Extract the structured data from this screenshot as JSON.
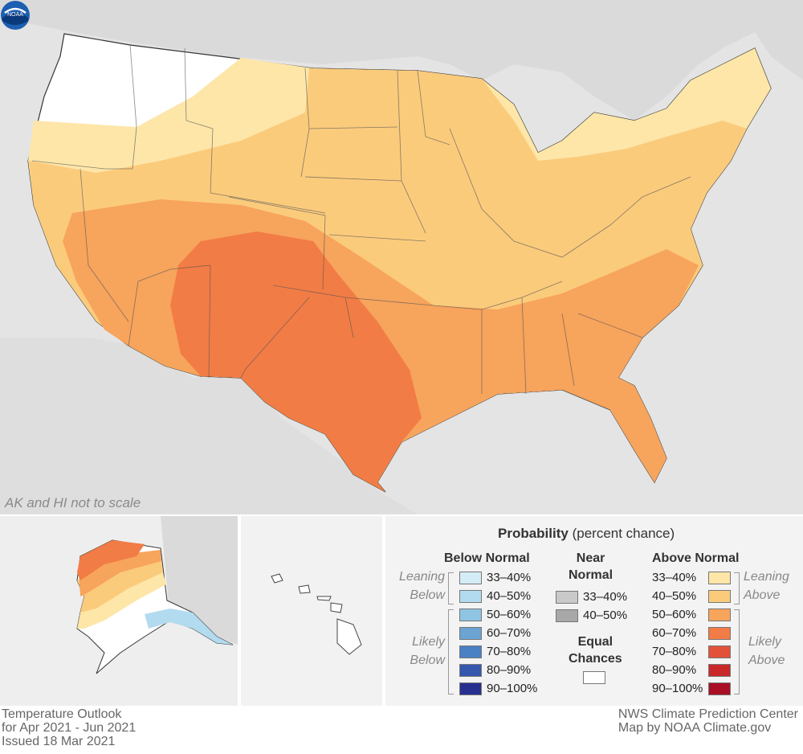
{
  "map": {
    "note": "AK and HI not to scale",
    "logo": "noaa-logo"
  },
  "legend": {
    "title_bold": "Probability",
    "title_rest": "(percent chance)",
    "below_heading": "Below Normal",
    "near_heading": [
      "Near",
      "Normal"
    ],
    "above_heading": "Above Normal",
    "equal_heading": [
      "Equal",
      "Chances"
    ],
    "leaning_below": [
      "Leaning",
      "Below"
    ],
    "likely_below": [
      "Likely",
      "Below"
    ],
    "leaning_above": [
      "Leaning",
      "Above"
    ],
    "likely_above": [
      "Likely",
      "Above"
    ],
    "below_rows": [
      {
        "label": "33–40%",
        "color": "#d4ecf5"
      },
      {
        "label": "40–50%",
        "color": "#b3dbef"
      },
      {
        "label": "50–60%",
        "color": "#8fc4e3"
      },
      {
        "label": "60–70%",
        "color": "#6ba3d3"
      },
      {
        "label": "70–80%",
        "color": "#4a80c4"
      },
      {
        "label": "80–90%",
        "color": "#3557ad"
      },
      {
        "label": "90–100%",
        "color": "#28308f"
      }
    ],
    "near_rows": [
      {
        "label": "33–40%",
        "color": "#c9c9c9"
      },
      {
        "label": "40–50%",
        "color": "#a8a8a8"
      }
    ],
    "above_rows": [
      {
        "label": "33–40%",
        "color": "#fde6a8"
      },
      {
        "label": "40–50%",
        "color": "#fbcb7c"
      },
      {
        "label": "50–60%",
        "color": "#f7a45c"
      },
      {
        "label": "60–70%",
        "color": "#f27c45"
      },
      {
        "label": "70–80%",
        "color": "#e2513a"
      },
      {
        "label": "80–90%",
        "color": "#c9282b"
      },
      {
        "label": "90–100%",
        "color": "#a80f25"
      }
    ]
  },
  "footer": {
    "left": [
      "Temperature Outlook",
      "for Apr 2021 - Jun 2021",
      "Issued 18 Mar 2021"
    ],
    "right": [
      "NWS Climate Prediction Center",
      "Map by NOAA Climate.gov"
    ]
  }
}
